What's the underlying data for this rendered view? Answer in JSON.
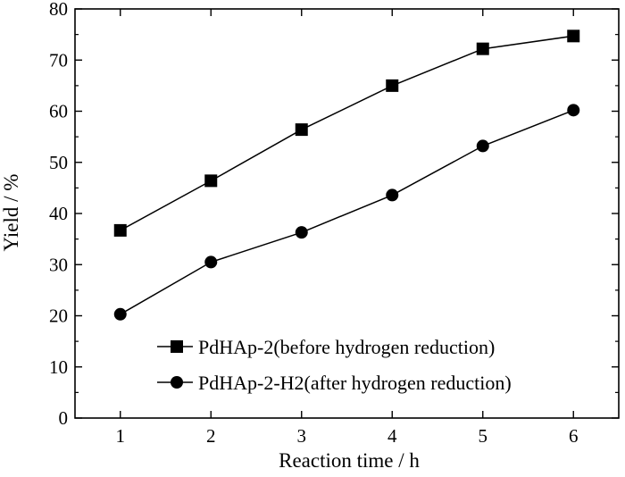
{
  "chart_data": {
    "type": "line",
    "title": "",
    "xlabel": "Reaction time / h",
    "ylabel": "Yield / %",
    "xlim": [
      0.5,
      6.5
    ],
    "ylim": [
      0,
      80
    ],
    "x": [
      1,
      2,
      3,
      4,
      5,
      6
    ],
    "xticks": [
      "1",
      "2",
      "3",
      "4",
      "5",
      "6"
    ],
    "yticks": [
      "0",
      "10",
      "20",
      "30",
      "40",
      "50",
      "60",
      "70",
      "80"
    ],
    "grid": false,
    "legend_position": "bottom-right",
    "series": [
      {
        "name": "PdHAp-2(before hydrogen reduction)",
        "marker": "square",
        "color": "#000000",
        "values": [
          36.7,
          46.4,
          56.4,
          65.0,
          72.2,
          74.7
        ]
      },
      {
        "name": "PdHAp-2-H2(after hydrogen reduction)",
        "marker": "circle",
        "color": "#000000",
        "values": [
          20.3,
          30.5,
          36.3,
          43.6,
          53.2,
          60.2
        ]
      }
    ]
  }
}
